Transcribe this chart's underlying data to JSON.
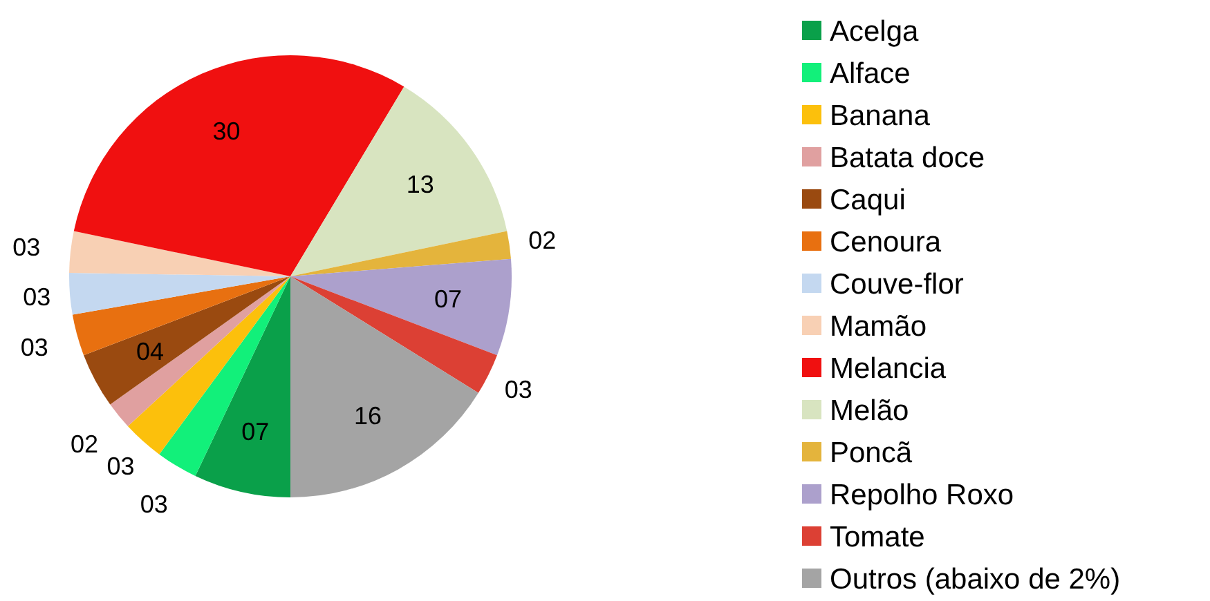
{
  "chart_data": {
    "type": "pie",
    "categories": [
      "Acelga",
      "Alface",
      "Banana",
      "Batata doce",
      "Caqui",
      "Cenoura",
      "Couve-flor",
      "Mamão",
      "Melancia",
      "Melão",
      "Poncã",
      "Repolho Roxo",
      "Tomate",
      "Outros (abaixo de 2%)"
    ],
    "values": [
      7,
      3,
      3,
      2,
      4,
      3,
      3,
      3,
      30,
      13,
      2,
      7,
      3,
      16
    ],
    "value_labels": [
      "07",
      "03",
      "03",
      "02",
      "04",
      "03",
      "03",
      "03",
      "30",
      "13",
      "02",
      "07",
      "03",
      "16"
    ],
    "colors": [
      "#0aa04a",
      "#12f07a",
      "#fcc00c",
      "#e0a0a0",
      "#9a4a10",
      "#e87010",
      "#c4d8f0",
      "#f8d0b4",
      "#f01010",
      "#d8e4c0",
      "#e4b43c",
      "#aca0cc",
      "#dc4034",
      "#a4a4a4"
    ],
    "legend": "right"
  }
}
